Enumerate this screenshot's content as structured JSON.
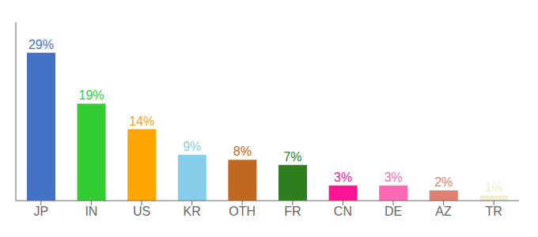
{
  "chart_data": {
    "type": "bar",
    "categories": [
      "JP",
      "IN",
      "US",
      "KR",
      "OTH",
      "FR",
      "CN",
      "DE",
      "AZ",
      "TR"
    ],
    "values": [
      29,
      19,
      14,
      9,
      8,
      7,
      3,
      3,
      2,
      1
    ],
    "value_labels": [
      "29%",
      "19%",
      "14%",
      "9%",
      "8%",
      "7%",
      "3%",
      "3%",
      "2%",
      "1%"
    ],
    "colors": [
      "#4472C4",
      "#33CC33",
      "#FFA500",
      "#87CEEB",
      "#C06820",
      "#2E7D1E",
      "#FF1493",
      "#FF69B4",
      "#E08070",
      "#F0EDD0"
    ],
    "ylim": [
      0,
      35
    ],
    "data_labels": true,
    "tick_labels": "x",
    "grid": false
  }
}
